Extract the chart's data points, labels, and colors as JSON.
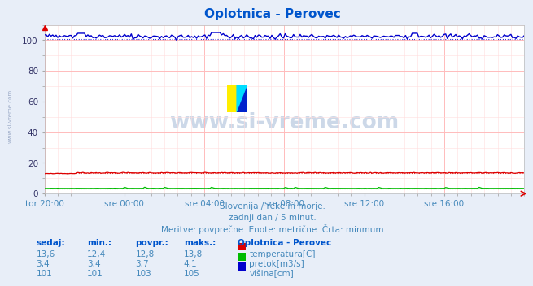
{
  "title": "Oplotnica - Perovec",
  "title_color": "#0055cc",
  "bg_color": "#e8eef8",
  "plot_bg_color": "#ffffff",
  "grid_major_color": "#ffbbbb",
  "grid_minor_color": "#ffdddd",
  "x_labels": [
    "tor 20:00",
    "sre 00:00",
    "sre 04:00",
    "sre 08:00",
    "sre 12:00",
    "sre 16:00"
  ],
  "x_ticks_pos": [
    0,
    24,
    48,
    72,
    96,
    120
  ],
  "x_max": 144,
  "y_min": 0,
  "y_max": 110,
  "y_ticks": [
    0,
    20,
    40,
    60,
    80,
    100
  ],
  "temp_color": "#dd0000",
  "flow_color": "#00bb00",
  "height_color": "#0000cc",
  "text_color": "#4488bb",
  "label_color": "#333366",
  "watermark_text": "www.si-vreme.com",
  "watermark_color": "#ccd8e8",
  "sidebar_text": "www.si-vreme.com",
  "footer_line1": "Slovenija / reke in morje.",
  "footer_line2": "zadnji dan / 5 minut.",
  "footer_line3": "Meritve: povprečne  Enote: metrične  Črta: minmum",
  "table_title": "Oplotnica - Perovec",
  "col_headers": [
    "sedaj:",
    "min.:",
    "povpr.:",
    "maks.:"
  ],
  "row1": [
    "13,6",
    "12,4",
    "12,8",
    "13,8",
    "temperatura[C]"
  ],
  "row2": [
    "3,4",
    "3,4",
    "3,7",
    "4,1",
    "pretok[m3/s]"
  ],
  "row3": [
    "101",
    "101",
    "103",
    "105",
    "višina[cm]"
  ],
  "legend_colors": [
    "#dd0000",
    "#00bb00",
    "#0000cc"
  ],
  "n_points": 288
}
